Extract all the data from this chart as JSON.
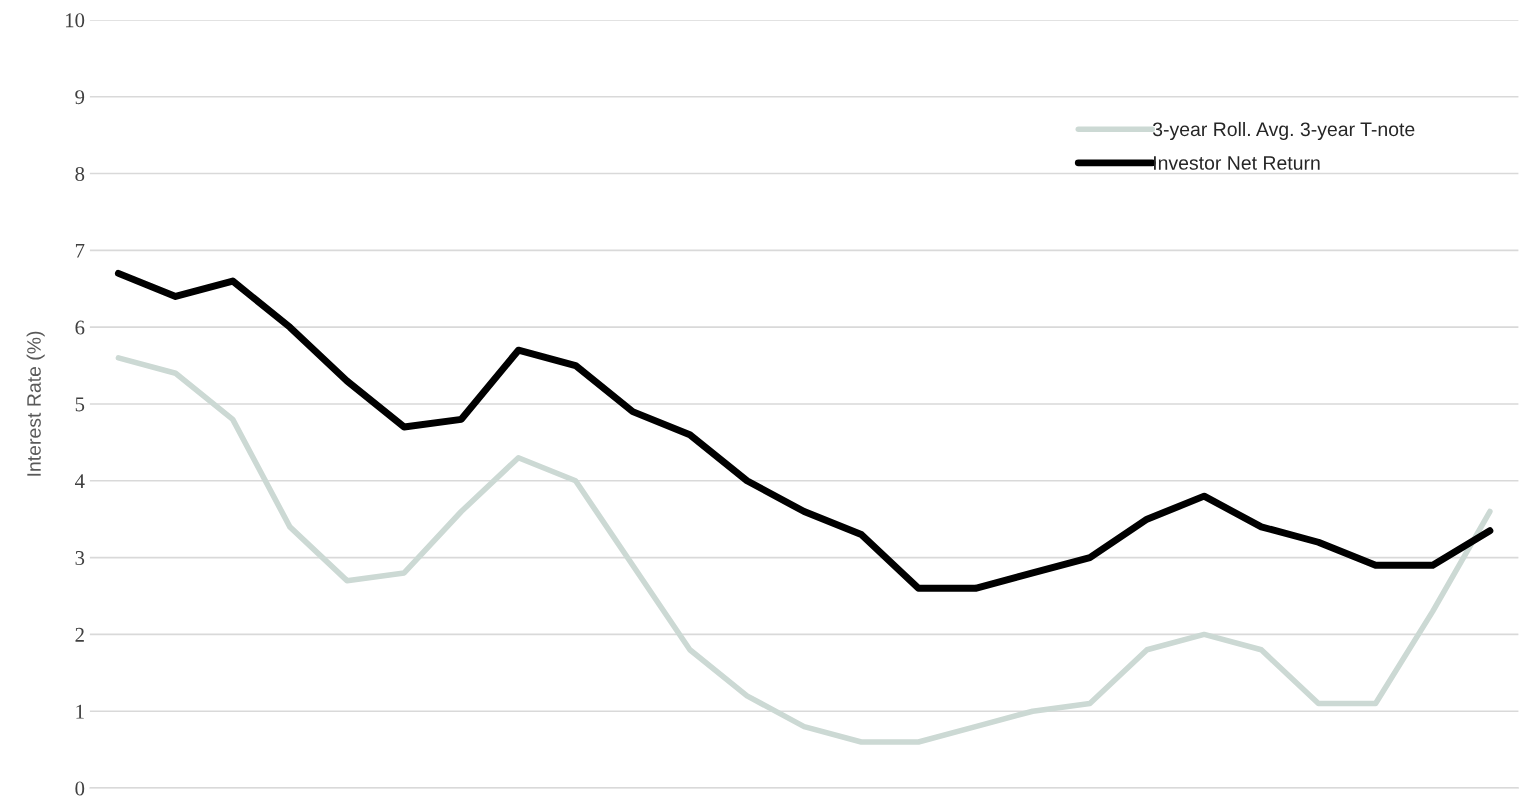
{
  "chart_data": {
    "type": "line",
    "ylabel": "Interest Rate (%)",
    "categories": [
      null,
      null,
      null,
      null,
      null,
      null,
      null,
      null,
      null,
      null,
      null,
      null,
      null,
      null,
      null,
      null,
      null,
      null,
      null,
      null,
      null,
      null,
      null,
      null,
      null
    ],
    "series": [
      {
        "name": "3-year Roll. Avg. 3-year T-note",
        "color": "#ccd9d4",
        "values": [
          5.6,
          5.4,
          4.8,
          3.4,
          2.7,
          2.8,
          3.6,
          4.3,
          4.0,
          2.9,
          1.8,
          1.2,
          0.8,
          0.6,
          0.6,
          0.8,
          1.0,
          1.1,
          1.8,
          2.0,
          1.8,
          1.1,
          1.1,
          2.3,
          3.6
        ]
      },
      {
        "name": "Investor Net Return",
        "color": "#000000",
        "values": [
          6.7,
          6.4,
          6.6,
          6.0,
          5.3,
          4.7,
          4.8,
          5.7,
          5.5,
          4.9,
          4.6,
          4.0,
          3.6,
          3.3,
          2.6,
          2.6,
          2.8,
          3.0,
          3.5,
          3.8,
          3.4,
          3.2,
          2.9,
          2.9,
          3.35
        ]
      }
    ],
    "ylim": [
      0,
      10
    ],
    "yticks": [
      0,
      1,
      2,
      3,
      4,
      5,
      6,
      7,
      8,
      9,
      10
    ],
    "grid": "y",
    "legend": "top right",
    "tick_labels": "y",
    "marker": "none",
    "line_style": "solid"
  }
}
